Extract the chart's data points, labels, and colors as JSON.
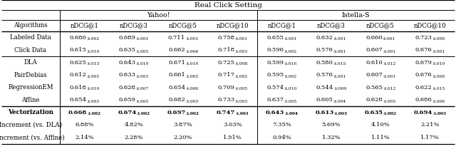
{
  "title": "Real Click Setting",
  "yahoo_label": "Yahoo!",
  "istella_label": "Istella-S",
  "row_header": "Algorithms",
  "col_labels": [
    "nDCG@1",
    "nDCG@3",
    "nDCG@5",
    "nDCG@10",
    "nDCG@1",
    "nDCG@3",
    "nDCG@5",
    "nDCG@10"
  ],
  "rows": [
    {
      "label": "Labeled Data",
      "values": [
        [
          "0.680",
          "±.002"
        ],
        [
          "0.689",
          "±.001"
        ],
        [
          "0.711",
          "±.001"
        ],
        [
          "0.758",
          "±.001"
        ],
        [
          "0.655",
          "±.001"
        ],
        [
          "0.632",
          "±.001"
        ],
        [
          "0.660",
          "±.001"
        ],
        [
          "0.723",
          "±.000"
        ]
      ],
      "bold": false,
      "group": "top"
    },
    {
      "label": "Click Data",
      "values": [
        [
          "0.615",
          "±.010"
        ],
        [
          "0.635",
          "±.005"
        ],
        [
          "0.662",
          "±.004"
        ],
        [
          "0.718",
          "±.003"
        ],
        [
          "0.596",
          "±.002"
        ],
        [
          "0.576",
          "±.001"
        ],
        [
          "0.607",
          "±.001"
        ],
        [
          "0.676",
          "±.001"
        ]
      ],
      "bold": false,
      "group": "top"
    },
    {
      "label": "DLA",
      "values": [
        [
          "0.625",
          "±.013"
        ],
        [
          "0.643",
          "±.010"
        ],
        [
          "0.671",
          "±.010"
        ],
        [
          "0.725",
          "±.008"
        ],
        [
          "0.599",
          "±.016"
        ],
        [
          "0.580",
          "±.015"
        ],
        [
          "0.610",
          "±.012"
        ],
        [
          "0.679",
          "±.010"
        ]
      ],
      "bold": false,
      "group": "middle"
    },
    {
      "label": "PairDebias",
      "values": [
        [
          "0.612",
          "±.005"
        ],
        [
          "0.633",
          "±.003"
        ],
        [
          "0.661",
          "±.003"
        ],
        [
          "0.717",
          "±.002"
        ],
        [
          "0.595",
          "±.002"
        ],
        [
          "0.576",
          "±.001"
        ],
        [
          "0.607",
          "±.001"
        ],
        [
          "0.676",
          "±.000"
        ]
      ],
      "bold": false,
      "group": "middle"
    },
    {
      "label": "RegressionEM",
      "values": [
        [
          "0.618",
          "±.010"
        ],
        [
          "0.628",
          "±.007"
        ],
        [
          "0.654",
          "±.006"
        ],
        [
          "0.709",
          "±.005"
        ],
        [
          "0.574",
          "±.010"
        ],
        [
          "0.544",
          "±.009"
        ],
        [
          "0.565",
          "±.012"
        ],
        [
          "0.622",
          "±.015"
        ]
      ],
      "bold": false,
      "group": "middle"
    },
    {
      "label": "Affine",
      "values": [
        [
          "0.654",
          "±.003"
        ],
        [
          "0.659",
          "±.003"
        ],
        [
          "0.682",
          "±.003"
        ],
        [
          "0.733",
          "±.003"
        ],
        [
          "0.637",
          "±.005"
        ],
        [
          "0.605",
          "±.004"
        ],
        [
          "0.628",
          "±.005"
        ],
        [
          "0.686",
          "±.006"
        ]
      ],
      "bold": false,
      "group": "middle"
    },
    {
      "label": "Vectorization",
      "values": [
        [
          "0.668",
          "±.002"
        ],
        [
          "0.674",
          "±.002"
        ],
        [
          "0.697",
          "±.002"
        ],
        [
          "0.747",
          "±.001"
        ],
        [
          "0.643",
          "±.004"
        ],
        [
          "0.613",
          "±.003"
        ],
        [
          "0.635",
          "±.002"
        ],
        [
          "0.694",
          "±.003"
        ]
      ],
      "bold": true,
      "group": "bottom"
    },
    {
      "label": "Increment (vs. DLA)",
      "values": [
        [
          "6.88%",
          null
        ],
        [
          "4.82%",
          null
        ],
        [
          "3.87%",
          null
        ],
        [
          "3.03%",
          null
        ],
        [
          "7.35%",
          null
        ],
        [
          "5.69%",
          null
        ],
        [
          "4.10%",
          null
        ],
        [
          "2.21%",
          null
        ]
      ],
      "bold": false,
      "group": "bottom"
    },
    {
      "label": "Increment (vs. Affine)",
      "values": [
        [
          "2.14%",
          null
        ],
        [
          "2.28%",
          null
        ],
        [
          "2.20%",
          null
        ],
        [
          "1.91%",
          null
        ],
        [
          "0.94%",
          null
        ],
        [
          "1.32%",
          null
        ],
        [
          "1.11%",
          null
        ],
        [
          "1.17%",
          null
        ]
      ],
      "bold": false,
      "group": "bottom"
    }
  ],
  "fs_title": 7.5,
  "fs_group": 6.8,
  "fs_colhdr": 6.2,
  "fs_algo": 6.2,
  "fs_main": 6.0,
  "fs_sub": 4.2
}
